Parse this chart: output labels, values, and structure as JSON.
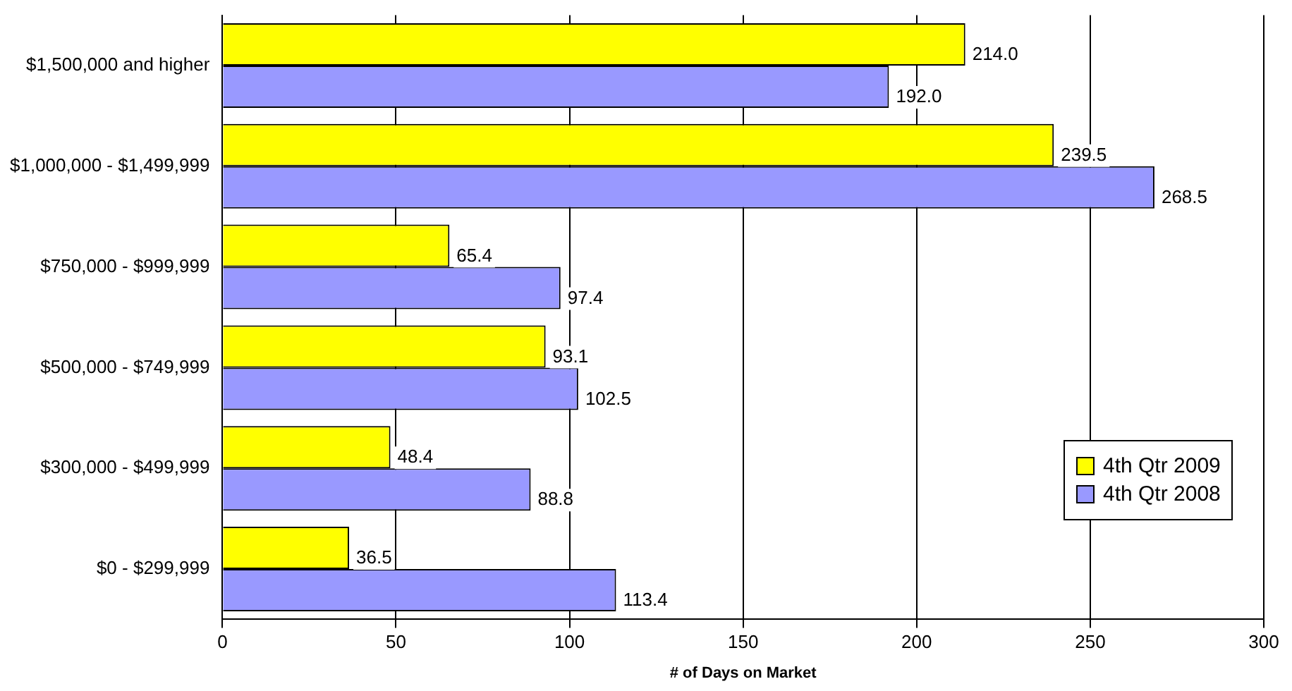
{
  "chart_data": {
    "type": "bar",
    "orientation": "horizontal",
    "xlabel": "# of Days on Market",
    "categories": [
      "$1,500,000 and higher",
      "$1,000,000 - $1,499,999",
      "$750,000 - $999,999",
      "$500,000 - $749,999",
      "$300,000 - $499,999",
      "$0 - $299,999"
    ],
    "series": [
      {
        "name": "4th Qtr 2009",
        "color": "#ffff00",
        "values": [
          214.0,
          239.5,
          65.4,
          93.1,
          48.4,
          36.5
        ],
        "value_labels": [
          "214.0",
          "239.5",
          "65.4",
          "93.1",
          "48.4",
          "36.5"
        ]
      },
      {
        "name": "4th Qtr 2008",
        "color": "#9999ff",
        "values": [
          192.0,
          268.5,
          97.4,
          102.5,
          88.8,
          113.4
        ],
        "value_labels": [
          "192.0",
          "268.5",
          "97.4",
          "102.5",
          "88.8",
          "113.4"
        ]
      }
    ],
    "xlim": [
      0,
      300
    ],
    "xticks": [
      0,
      50,
      100,
      150,
      200,
      250,
      300
    ],
    "grid": "x",
    "legend": "bottom right"
  }
}
